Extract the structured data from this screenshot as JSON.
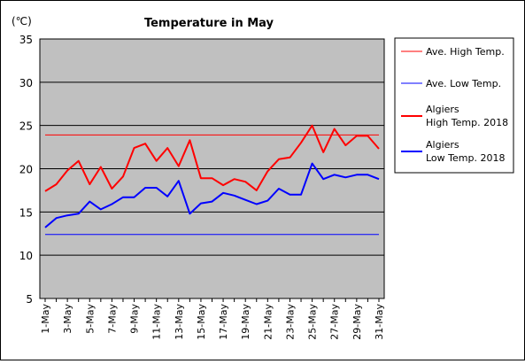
{
  "chart_data": {
    "type": "line",
    "title": "Temperature in May",
    "unit": "(℃)",
    "ylim": [
      5,
      35
    ],
    "yticks": [
      5,
      10,
      15,
      20,
      25,
      30,
      35
    ],
    "grid": true,
    "legend_position": "right",
    "x": [
      "1-May",
      "2-May",
      "3-May",
      "4-May",
      "5-May",
      "6-May",
      "7-May",
      "8-May",
      "9-May",
      "10-May",
      "11-May",
      "12-May",
      "13-May",
      "14-May",
      "15-May",
      "16-May",
      "17-May",
      "18-May",
      "19-May",
      "20-May",
      "21-May",
      "22-May",
      "23-May",
      "24-May",
      "25-May",
      "26-May",
      "27-May",
      "28-May",
      "29-May",
      "30-May",
      "31-May"
    ],
    "xtick_labels": [
      "1-May",
      "3-May",
      "5-May",
      "7-May",
      "9-May",
      "11-May",
      "13-May",
      "15-May",
      "17-May",
      "19-May",
      "21-May",
      "23-May",
      "25-May",
      "27-May",
      "29-May",
      "31-May"
    ],
    "series": [
      {
        "name": "Ave. High Temp.",
        "color": "#ff0000",
        "stroke": "thin",
        "values": [
          23.9,
          23.9,
          23.9,
          23.9,
          23.9,
          23.9,
          23.9,
          23.9,
          23.9,
          23.9,
          23.9,
          23.9,
          23.9,
          23.9,
          23.9,
          23.9,
          23.9,
          23.9,
          23.9,
          23.9,
          23.9,
          23.9,
          23.9,
          23.9,
          23.9,
          23.9,
          23.9,
          23.9,
          23.9,
          23.9,
          23.9
        ]
      },
      {
        "name": "Ave. Low Temp.",
        "color": "#0000ff",
        "stroke": "thin",
        "values": [
          12.4,
          12.4,
          12.4,
          12.4,
          12.4,
          12.4,
          12.4,
          12.4,
          12.4,
          12.4,
          12.4,
          12.4,
          12.4,
          12.4,
          12.4,
          12.4,
          12.4,
          12.4,
          12.4,
          12.4,
          12.4,
          12.4,
          12.4,
          12.4,
          12.4,
          12.4,
          12.4,
          12.4,
          12.4,
          12.4,
          12.4
        ]
      },
      {
        "name": "Algiers\nHigh Temp. 2018",
        "color": "#ff0000",
        "stroke": "thick",
        "values": [
          17.4,
          18.2,
          19.8,
          20.9,
          18.2,
          20.2,
          17.7,
          19.1,
          22.4,
          22.9,
          20.9,
          22.4,
          20.3,
          23.3,
          18.9,
          18.9,
          18.1,
          18.8,
          18.5,
          17.5,
          19.7,
          21.1,
          21.3,
          23.0,
          25.0,
          21.9,
          24.6,
          22.7,
          23.8,
          23.8,
          22.3
        ]
      },
      {
        "name": "Algiers\nLow Temp. 2018",
        "color": "#0000ff",
        "stroke": "thick",
        "values": [
          13.2,
          14.3,
          14.6,
          14.8,
          16.2,
          15.3,
          15.9,
          16.7,
          16.7,
          17.8,
          17.8,
          16.8,
          18.6,
          14.8,
          16.0,
          16.2,
          17.2,
          16.9,
          16.4,
          15.9,
          16.3,
          17.7,
          17.0,
          17.0,
          20.6,
          18.8,
          19.3,
          19.0,
          19.3,
          19.3,
          18.8
        ]
      }
    ]
  }
}
